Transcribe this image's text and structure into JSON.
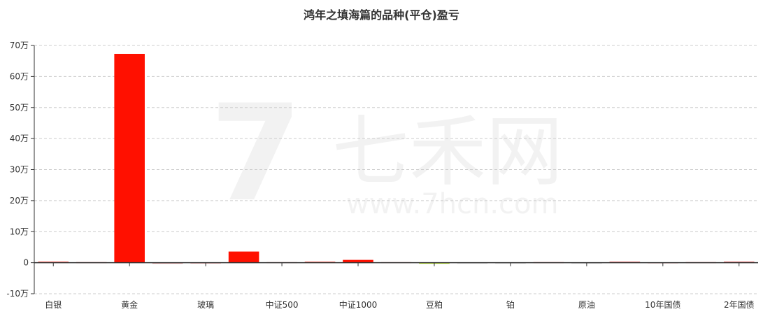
{
  "title": "鸿年之填海篇的品种(平仓)盈亏",
  "watermark": {
    "logo": "7",
    "name": "七禾网",
    "url": "www.7hcn.com"
  },
  "chart_data": {
    "type": "bar",
    "title": "鸿年之填海篇的品种(平仓)盈亏",
    "categories": [
      "白银",
      "",
      "黄金",
      "",
      "玻璃",
      "",
      "中证500",
      "",
      "中证1000",
      "",
      "豆粕",
      "",
      "铂",
      "",
      "原油",
      "",
      "10年国债",
      "",
      "2年国债"
    ],
    "values": [
      0.4,
      0.2,
      67.3,
      0,
      0.05,
      3.6,
      0.2,
      0.3,
      0.9,
      0.2,
      -0.1,
      0,
      0,
      0.2,
      0,
      0.3,
      0.1,
      0.2,
      0.3
    ],
    "colors": [
      "#ff7a70",
      "#f08080",
      "#ff1000",
      "#e0a0a0",
      "#f5b0b0",
      "#ff1000",
      "#f5b0b0",
      "#ff2a1a",
      "#ff1000",
      "#f5b0b0",
      "#b5e61d",
      "#dddddd",
      "#dddddd",
      "#f08080",
      "#dddddd",
      "#e03030",
      "#f5c0c0",
      "#f08080",
      "#e02020"
    ],
    "unit": "万",
    "yticks": [
      "-10万",
      "0",
      "10万",
      "20万",
      "30万",
      "40万",
      "50万",
      "60万",
      "70万"
    ],
    "ylim": [
      -10,
      70
    ],
    "grid": true,
    "legend": "none"
  }
}
